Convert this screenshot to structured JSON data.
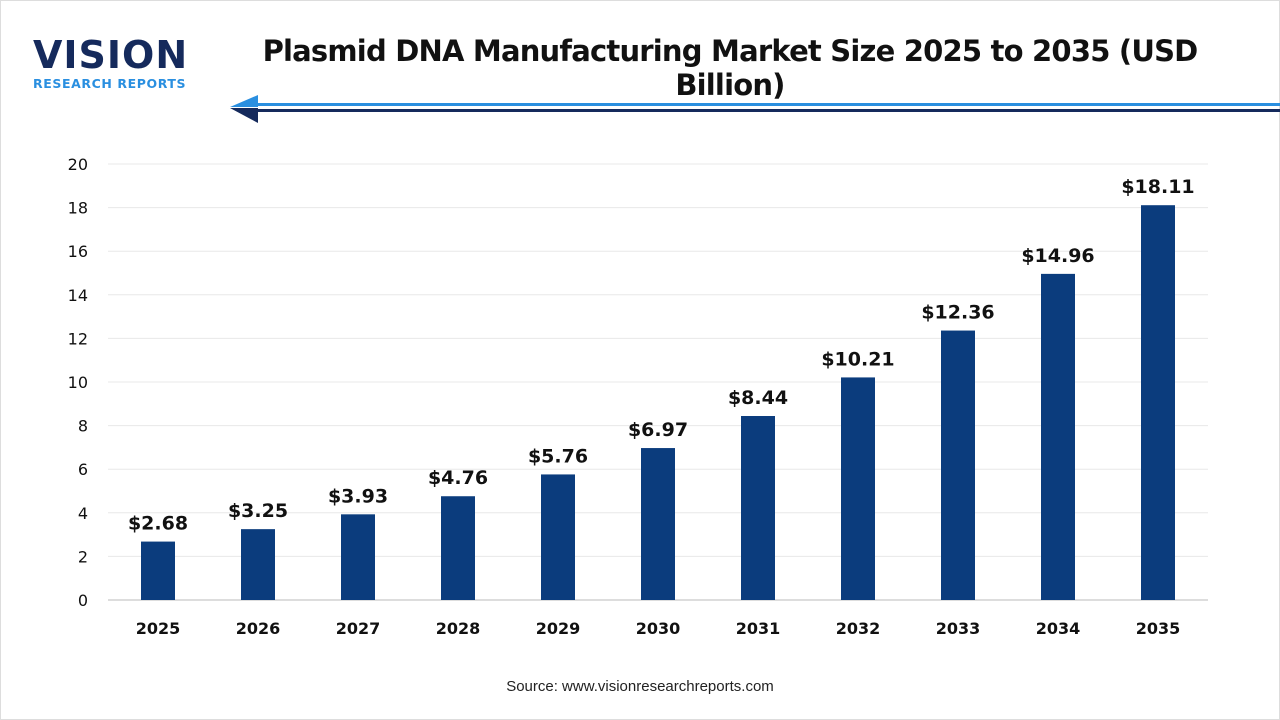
{
  "logo": {
    "main": "VISION",
    "sub": "RESEARCH REPORTS"
  },
  "source": "Source: www.visionresearchreports.com",
  "colors": {
    "bar": "#0b3c7d",
    "logo_dark": "#152a5c",
    "logo_accent": "#2a8fe0"
  },
  "chart_data": {
    "type": "bar",
    "title": "Plasmid DNA Manufacturing Market Size 2025 to 2035 (USD Billion)",
    "categories": [
      "2025",
      "2026",
      "2027",
      "2028",
      "2029",
      "2030",
      "2031",
      "2032",
      "2033",
      "2034",
      "2035"
    ],
    "values": [
      2.68,
      3.25,
      3.93,
      4.76,
      5.76,
      6.97,
      8.44,
      10.21,
      12.36,
      14.96,
      18.11
    ],
    "data_labels": [
      "$2.68",
      "$3.25",
      "$3.93",
      "$4.76",
      "$5.76",
      "$6.97",
      "$8.44",
      "$10.21",
      "$12.36",
      "$14.96",
      "$18.11"
    ],
    "yticks": [
      "0",
      "2",
      "4",
      "6",
      "8",
      "10",
      "12",
      "14",
      "16",
      "18",
      "20"
    ],
    "ylim": [
      0,
      20
    ],
    "grid": true,
    "xlabel": "",
    "ylabel": ""
  }
}
